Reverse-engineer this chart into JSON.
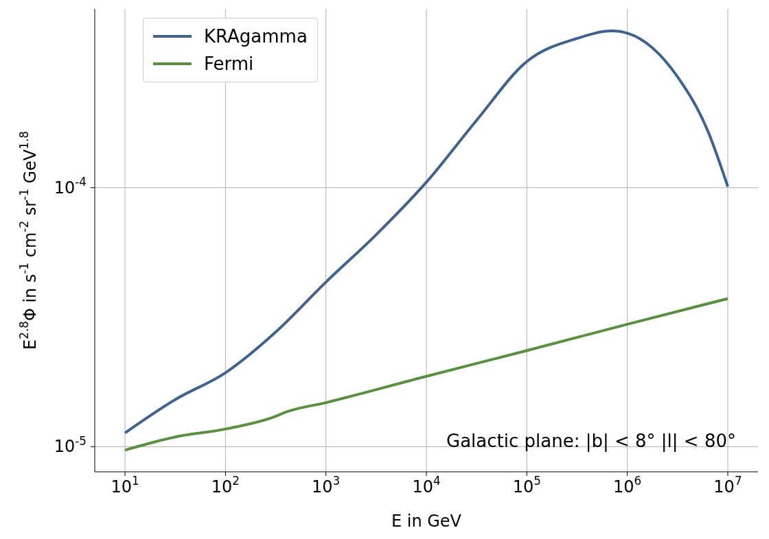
{
  "chart_data": {
    "type": "line",
    "xlabel": "E in GeV",
    "ylabel": "E$^{2.8}$Φ in s$^{-1}$ cm$^{-2}$ sr$^{-1}$ GeV$^{1.8}$",
    "log": "xy",
    "grid": true,
    "legend": "top left",
    "line_style": "solid",
    "marker": "none",
    "xlim": [
      5,
      20000000
    ],
    "ylim": [
      8e-06,
      0.00049
    ],
    "xticks": [
      {
        "value": 10,
        "label": "10$^{1}$"
      },
      {
        "value": 100,
        "label": "10$^{2}$"
      },
      {
        "value": 1000,
        "label": "10$^{3}$"
      },
      {
        "value": 10000,
        "label": "10$^{4}$"
      },
      {
        "value": 100000,
        "label": "10$^{5}$"
      },
      {
        "value": 1000000,
        "label": "10$^{6}$"
      },
      {
        "value": 10000000,
        "label": "10$^{7}$"
      }
    ],
    "yticks": [
      {
        "value": 1e-05,
        "label": "10$^{-5}$"
      },
      {
        "value": 0.0001,
        "label": "10$^{-4}$"
      }
    ],
    "annotations": [
      "Galactic plane: |b| < 8°  |l| < 80°"
    ],
    "series": [
      {
        "name": "KRAgamma",
        "color": "#3f628f",
        "x": [
          10,
          31.6,
          100,
          316,
          1000,
          3160,
          10000,
          31600,
          100000,
          316000,
          708000,
          1000000,
          3160000,
          6310000,
          10000000
        ],
        "values": [
          1.13e-05,
          1.52e-05,
          1.93e-05,
          2.77e-05,
          4.32e-05,
          6.58e-05,
          0.000105,
          0.000182,
          0.000307,
          0.000377,
          0.000403,
          0.000395,
          0.000268,
          0.000166,
          0.000101
        ]
      },
      {
        "name": "Fermi",
        "color": "#59903f",
        "x": [
          10,
          31.6,
          100,
          316,
          400,
          1000,
          10000,
          100000,
          1000000,
          10000000
        ],
        "values": [
          9.7e-06,
          1.09e-05,
          1.17e-05,
          1.31e-05,
          1.36e-05,
          1.48e-05,
          1.87e-05,
          2.35e-05,
          2.97e-05,
          3.73e-05
        ]
      }
    ]
  }
}
